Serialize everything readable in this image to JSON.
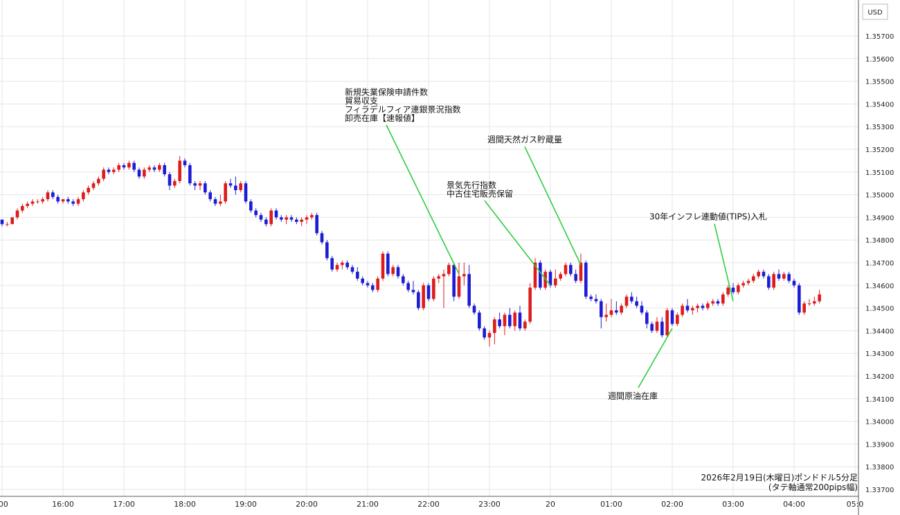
{
  "chart_data": {
    "type": "candlestick",
    "currency": "USD",
    "colors": {
      "up": "#dd1c1c",
      "down": "#1c1cd6",
      "annotation_line": "#2ecc40"
    },
    "grid": true,
    "y_axis": {
      "position": "right",
      "ylim": [
        1.337,
        1.358
      ],
      "ticks": [
        "1.33700",
        "1.33800",
        "1.33900",
        "1.34000",
        "1.34100",
        "1.34200",
        "1.34300",
        "1.34400",
        "1.34500",
        "1.34600",
        "1.34700",
        "1.34800",
        "1.34900",
        "1.35000",
        "1.35100",
        "1.35200",
        "1.35300",
        "1.35400",
        "1.35500",
        "1.35600",
        "1.35700"
      ]
    },
    "x_axis": {
      "ticks": [
        {
          "label": ":00",
          "minutes": 900
        },
        {
          "label": "16:00",
          "minutes": 960
        },
        {
          "label": "17:00",
          "minutes": 1020
        },
        {
          "label": "18:00",
          "minutes": 1080
        },
        {
          "label": "19:00",
          "minutes": 1140
        },
        {
          "label": "20:00",
          "minutes": 1200
        },
        {
          "label": "21:00",
          "minutes": 1260
        },
        {
          "label": "22:00",
          "minutes": 1320
        },
        {
          "label": "23:00",
          "minutes": 1380
        },
        {
          "label": "20",
          "minutes": 1440
        },
        {
          "label": "01:00",
          "minutes": 1500
        },
        {
          "label": "02:00",
          "minutes": 1560
        },
        {
          "label": "03:00",
          "minutes": 1620
        },
        {
          "label": "04:00",
          "minutes": 1680
        },
        {
          "label": "05:0",
          "minutes": 1740
        }
      ]
    },
    "candles_start_minutes": 900,
    "candle_minutes": 5,
    "candles": [
      [
        1.3489,
        1.3489,
        1.3486,
        1.3487
      ],
      [
        1.3487,
        1.3488,
        1.3486,
        1.3487
      ],
      [
        1.3487,
        1.349,
        1.3487,
        1.349
      ],
      [
        1.349,
        1.3494,
        1.3489,
        1.3493
      ],
      [
        1.3493,
        1.3496,
        1.3492,
        1.3495
      ],
      [
        1.3495,
        1.3497,
        1.3494,
        1.3496
      ],
      [
        1.3496,
        1.3498,
        1.3495,
        1.3497
      ],
      [
        1.3497,
        1.3498,
        1.3496,
        1.3497
      ],
      [
        1.3497,
        1.3499,
        1.3496,
        1.3498
      ],
      [
        1.3498,
        1.3502,
        1.3497,
        1.3501
      ],
      [
        1.3501,
        1.3502,
        1.3498,
        1.3499
      ],
      [
        1.3499,
        1.35,
        1.3496,
        1.3497
      ],
      [
        1.3497,
        1.3498,
        1.3496,
        1.3498
      ],
      [
        1.3498,
        1.3499,
        1.3496,
        1.3497
      ],
      [
        1.3497,
        1.3498,
        1.3495,
        1.3496
      ],
      [
        1.3496,
        1.3499,
        1.3495,
        1.3498
      ],
      [
        1.3498,
        1.3502,
        1.3497,
        1.3501
      ],
      [
        1.3501,
        1.3504,
        1.35,
        1.3503
      ],
      [
        1.3503,
        1.3506,
        1.3502,
        1.3505
      ],
      [
        1.3505,
        1.3508,
        1.3504,
        1.3507
      ],
      [
        1.3507,
        1.3512,
        1.3506,
        1.3511
      ],
      [
        1.3511,
        1.3512,
        1.3509,
        1.351
      ],
      [
        1.351,
        1.3512,
        1.3509,
        1.3511
      ],
      [
        1.3511,
        1.3514,
        1.351,
        1.3513
      ],
      [
        1.3513,
        1.3514,
        1.3511,
        1.3512
      ],
      [
        1.3512,
        1.3515,
        1.3511,
        1.3514
      ],
      [
        1.3514,
        1.3515,
        1.351,
        1.3511
      ],
      [
        1.3511,
        1.3512,
        1.3507,
        1.3508
      ],
      [
        1.3508,
        1.3512,
        1.3507,
        1.3511
      ],
      [
        1.3511,
        1.3513,
        1.351,
        1.3512
      ],
      [
        1.3512,
        1.3513,
        1.351,
        1.3511
      ],
      [
        1.3511,
        1.3514,
        1.351,
        1.3513
      ],
      [
        1.3513,
        1.3514,
        1.3508,
        1.3509
      ],
      [
        1.3509,
        1.351,
        1.3502,
        1.3504
      ],
      [
        1.3504,
        1.3507,
        1.3503,
        1.3506
      ],
      [
        1.3506,
        1.3517,
        1.3505,
        1.3515
      ],
      [
        1.3515,
        1.3516,
        1.3512,
        1.3513
      ],
      [
        1.3513,
        1.3514,
        1.3504,
        1.3505
      ],
      [
        1.3505,
        1.3506,
        1.3502,
        1.3504
      ],
      [
        1.3504,
        1.3506,
        1.3502,
        1.3505
      ],
      [
        1.3505,
        1.3506,
        1.35,
        1.3501
      ],
      [
        1.3501,
        1.3502,
        1.3497,
        1.3498
      ],
      [
        1.3498,
        1.3499,
        1.3495,
        1.3496
      ],
      [
        1.3496,
        1.35,
        1.3495,
        1.3497
      ],
      [
        1.3497,
        1.3506,
        1.3496,
        1.3505
      ],
      [
        1.3505,
        1.3507,
        1.3503,
        1.3504
      ],
      [
        1.3504,
        1.3508,
        1.35,
        1.3502
      ],
      [
        1.3502,
        1.3506,
        1.3501,
        1.3505
      ],
      [
        1.3505,
        1.3506,
        1.3496,
        1.3497
      ],
      [
        1.3497,
        1.3498,
        1.3492,
        1.3493
      ],
      [
        1.3493,
        1.3494,
        1.349,
        1.3491
      ],
      [
        1.3491,
        1.3492,
        1.3488,
        1.3489
      ],
      [
        1.3489,
        1.349,
        1.3486,
        1.3487
      ],
      [
        1.3487,
        1.3494,
        1.3486,
        1.3493
      ],
      [
        1.3493,
        1.3494,
        1.3489,
        1.349
      ],
      [
        1.349,
        1.3491,
        1.3488,
        1.3489
      ],
      [
        1.3489,
        1.3491,
        1.3487,
        1.349
      ],
      [
        1.349,
        1.3491,
        1.3488,
        1.3489
      ],
      [
        1.3489,
        1.349,
        1.3487,
        1.3488
      ],
      [
        1.3488,
        1.349,
        1.3486,
        1.3489
      ],
      [
        1.3489,
        1.3491,
        1.3487,
        1.349
      ],
      [
        1.349,
        1.3492,
        1.3489,
        1.3491
      ],
      [
        1.3491,
        1.3492,
        1.3482,
        1.3483
      ],
      [
        1.3483,
        1.3484,
        1.3478,
        1.3479
      ],
      [
        1.3479,
        1.348,
        1.3471,
        1.3472
      ],
      [
        1.3472,
        1.3473,
        1.3466,
        1.3467
      ],
      [
        1.3467,
        1.347,
        1.3466,
        1.3469
      ],
      [
        1.3469,
        1.3471,
        1.3467,
        1.347
      ],
      [
        1.347,
        1.3471,
        1.3467,
        1.3468
      ],
      [
        1.3468,
        1.3469,
        1.3465,
        1.3466
      ],
      [
        1.3466,
        1.3468,
        1.3462,
        1.3463
      ],
      [
        1.3463,
        1.3464,
        1.346,
        1.3461
      ],
      [
        1.3461,
        1.3462,
        1.3459,
        1.346
      ],
      [
        1.346,
        1.3461,
        1.3457,
        1.3458
      ],
      [
        1.3458,
        1.3464,
        1.3457,
        1.3463
      ],
      [
        1.3463,
        1.3475,
        1.3462,
        1.3474
      ],
      [
        1.3474,
        1.3475,
        1.3464,
        1.3465
      ],
      [
        1.3465,
        1.3469,
        1.3464,
        1.3468
      ],
      [
        1.3468,
        1.3469,
        1.3463,
        1.3464
      ],
      [
        1.3464,
        1.3465,
        1.346,
        1.3461
      ],
      [
        1.3461,
        1.3462,
        1.3457,
        1.3458
      ],
      [
        1.3458,
        1.3462,
        1.3456,
        1.3457
      ],
      [
        1.3457,
        1.3458,
        1.3449,
        1.345
      ],
      [
        1.345,
        1.3461,
        1.3449,
        1.346
      ],
      [
        1.346,
        1.3461,
        1.3453,
        1.3454
      ],
      [
        1.3454,
        1.3464,
        1.3453,
        1.3463
      ],
      [
        1.3463,
        1.3465,
        1.3461,
        1.3464
      ],
      [
        1.3464,
        1.3467,
        1.345,
        1.3465
      ],
      [
        1.3465,
        1.347,
        1.3464,
        1.3469
      ],
      [
        1.3469,
        1.347,
        1.3453,
        1.3455
      ],
      [
        1.3455,
        1.347,
        1.3454,
        1.3464
      ],
      [
        1.3464,
        1.347,
        1.346,
        1.3465
      ],
      [
        1.3465,
        1.3469,
        1.345,
        1.3451
      ],
      [
        1.3451,
        1.3452,
        1.3447,
        1.3448
      ],
      [
        1.3448,
        1.3449,
        1.344,
        1.3441
      ],
      [
        1.3441,
        1.3442,
        1.3436,
        1.3437
      ],
      [
        1.3437,
        1.344,
        1.3433,
        1.3439
      ],
      [
        1.3439,
        1.3446,
        1.3434,
        1.3445
      ],
      [
        1.3445,
        1.3448,
        1.3441,
        1.3442
      ],
      [
        1.3442,
        1.3448,
        1.3438,
        1.3447
      ],
      [
        1.3447,
        1.345,
        1.3441,
        1.3442
      ],
      [
        1.3442,
        1.3449,
        1.344,
        1.3448
      ],
      [
        1.3448,
        1.3451,
        1.344,
        1.3441
      ],
      [
        1.3441,
        1.3445,
        1.344,
        1.3444
      ],
      [
        1.3444,
        1.3461,
        1.3443,
        1.3459
      ],
      [
        1.3459,
        1.3472,
        1.3458,
        1.347
      ],
      [
        1.347,
        1.3471,
        1.3458,
        1.3459
      ],
      [
        1.3459,
        1.3467,
        1.3458,
        1.3466
      ],
      [
        1.3466,
        1.3467,
        1.3459,
        1.346
      ],
      [
        1.346,
        1.3467,
        1.3459,
        1.3463
      ],
      [
        1.3463,
        1.3466,
        1.3462,
        1.3465
      ],
      [
        1.3465,
        1.347,
        1.3464,
        1.3469
      ],
      [
        1.3469,
        1.347,
        1.3464,
        1.3465
      ],
      [
        1.3465,
        1.3467,
        1.3461,
        1.3462
      ],
      [
        1.3462,
        1.3474,
        1.3461,
        1.347
      ],
      [
        1.347,
        1.3471,
        1.3454,
        1.3455
      ],
      [
        1.3455,
        1.3456,
        1.3453,
        1.3454
      ],
      [
        1.3454,
        1.3456,
        1.3452,
        1.3453
      ],
      [
        1.3453,
        1.3454,
        1.3441,
        1.3446
      ],
      [
        1.3446,
        1.3452,
        1.3444,
        1.3447
      ],
      [
        1.3447,
        1.3454,
        1.3446,
        1.3449
      ],
      [
        1.3449,
        1.3453,
        1.3447,
        1.3448
      ],
      [
        1.3448,
        1.3452,
        1.3447,
        1.3451
      ],
      [
        1.3451,
        1.3456,
        1.345,
        1.3455
      ],
      [
        1.3455,
        1.3457,
        1.3452,
        1.3453
      ],
      [
        1.3453,
        1.3455,
        1.345,
        1.3451
      ],
      [
        1.3451,
        1.3453,
        1.3447,
        1.3448
      ],
      [
        1.3448,
        1.3449,
        1.3441,
        1.3443
      ],
      [
        1.3443,
        1.3444,
        1.3439,
        1.344
      ],
      [
        1.344,
        1.3446,
        1.3439,
        1.3444
      ],
      [
        1.3444,
        1.3446,
        1.3437,
        1.3438
      ],
      [
        1.3438,
        1.345,
        1.3437,
        1.3449
      ],
      [
        1.3449,
        1.345,
        1.3442,
        1.3443
      ],
      [
        1.3443,
        1.3448,
        1.3442,
        1.3447
      ],
      [
        1.3447,
        1.3452,
        1.3446,
        1.3451
      ],
      [
        1.3451,
        1.3454,
        1.3448,
        1.3449
      ],
      [
        1.3449,
        1.3451,
        1.3447,
        1.345
      ],
      [
        1.345,
        1.3452,
        1.3448,
        1.3451
      ],
      [
        1.3451,
        1.3452,
        1.3449,
        1.345
      ],
      [
        1.345,
        1.3453,
        1.3449,
        1.3452
      ],
      [
        1.3452,
        1.3454,
        1.3451,
        1.3453
      ],
      [
        1.3453,
        1.3454,
        1.3451,
        1.3452
      ],
      [
        1.3452,
        1.3457,
        1.3451,
        1.3456
      ],
      [
        1.3456,
        1.346,
        1.3455,
        1.3459
      ],
      [
        1.3459,
        1.3461,
        1.3456,
        1.3457
      ],
      [
        1.3457,
        1.3461,
        1.3456,
        1.346
      ],
      [
        1.346,
        1.3462,
        1.3459,
        1.3461
      ],
      [
        1.3461,
        1.3463,
        1.346,
        1.3462
      ],
      [
        1.3462,
        1.3465,
        1.3461,
        1.3464
      ],
      [
        1.3464,
        1.3467,
        1.3463,
        1.3466
      ],
      [
        1.3466,
        1.3467,
        1.3463,
        1.3464
      ],
      [
        1.3464,
        1.3465,
        1.3458,
        1.3459
      ],
      [
        1.3459,
        1.3466,
        1.3458,
        1.3465
      ],
      [
        1.3465,
        1.3467,
        1.3462,
        1.3463
      ],
      [
        1.3463,
        1.3466,
        1.3462,
        1.3465
      ],
      [
        1.3465,
        1.3466,
        1.3461,
        1.3462
      ],
      [
        1.3462,
        1.3463,
        1.3459,
        1.346
      ],
      [
        1.346,
        1.3461,
        1.3447,
        1.3448
      ],
      [
        1.3448,
        1.3453,
        1.3447,
        1.3452
      ],
      [
        1.3452,
        1.3454,
        1.3451,
        1.3452
      ],
      [
        1.3452,
        1.3455,
        1.3451,
        1.3453
      ],
      [
        1.3453,
        1.3458,
        1.3452,
        1.3456
      ]
    ],
    "annotations": [
      {
        "lines": [
          "新規失業保険申請件数",
          "貿易収支",
          "フィラデルフィア連銀景況指数",
          "卸売在庫【速報値】"
        ],
        "time_minutes": 1350,
        "price": 1.3465,
        "label_price": 1.3544
      },
      {
        "lines": [
          "週間天然ガス貯蔵量"
        ],
        "time_minutes": 1470,
        "price": 1.3469,
        "label_price": 1.3523
      },
      {
        "lines": [
          "景気先行指数",
          "中古住宅販売保留"
        ],
        "time_minutes": 1440,
        "price": 1.346,
        "label_price": 1.3503
      },
      {
        "lines": [
          "30年インフレ連動値(TIPS)入札"
        ],
        "time_minutes": 1620,
        "price": 1.3453,
        "label_price": 1.3489
      },
      {
        "lines": [
          "週間原油在庫"
        ],
        "time_minutes": 1560,
        "price": 1.3441,
        "label_price": 1.341
      }
    ],
    "caption": [
      "2026年2月19日(木曜日)ポンドドル5分足",
      "(タテ軸通常200pips幅)"
    ]
  }
}
